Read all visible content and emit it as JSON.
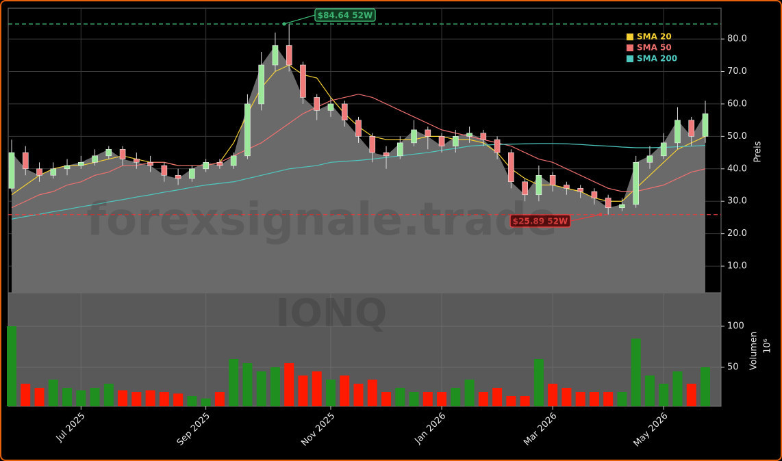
{
  "chart_data": {
    "type": "candlestick",
    "watermark": "forexsignale.trade",
    "symbol": "IONQ",
    "ylabel": "Preis",
    "categories": [
      null,
      null,
      null,
      null,
      null,
      "Jul 2025",
      null,
      null,
      null,
      null,
      null,
      null,
      null,
      null,
      "Sep 2025",
      null,
      null,
      null,
      null,
      null,
      null,
      null,
      null,
      "Nov 2025",
      null,
      null,
      null,
      null,
      null,
      null,
      null,
      "Jan 2026",
      null,
      null,
      null,
      null,
      null,
      null,
      null,
      "Mar 2026",
      null,
      null,
      null,
      null,
      null,
      null,
      null,
      "May 2026",
      null,
      null,
      null
    ],
    "open": [
      34,
      45,
      40,
      38,
      40,
      41,
      42,
      44,
      46,
      43,
      42,
      41,
      38,
      37,
      40,
      42,
      41,
      44,
      60,
      72,
      78,
      72,
      62,
      58,
      60,
      55,
      50,
      45,
      44,
      48,
      52,
      50,
      47,
      50,
      51,
      49,
      45,
      36,
      32,
      38,
      35,
      34,
      33,
      31,
      28,
      29,
      42,
      44,
      48,
      55,
      50
    ],
    "high": [
      49,
      47,
      42,
      42,
      43,
      44,
      46,
      47,
      47,
      45,
      44,
      42,
      40,
      41,
      43,
      43,
      45,
      63,
      76,
      82,
      84.64,
      73,
      63,
      62,
      61,
      56,
      51,
      47,
      50,
      55,
      53,
      51,
      52,
      53,
      52,
      50,
      46,
      37,
      41,
      39,
      36,
      35,
      34,
      32,
      31,
      44,
      47,
      51,
      59,
      56,
      61
    ],
    "low": [
      33,
      38,
      36,
      37,
      38,
      40,
      41,
      43,
      41,
      40,
      39,
      36,
      35,
      36,
      39,
      40,
      40,
      43,
      58,
      70,
      70,
      60,
      55,
      56,
      53,
      48,
      42,
      40,
      43,
      47,
      46,
      45,
      45,
      48,
      47,
      43,
      34,
      30,
      30,
      33,
      32,
      31,
      29,
      25.89,
      27,
      28,
      40,
      43,
      46,
      47,
      48
    ],
    "close": [
      45,
      40,
      38,
      40,
      41,
      42,
      44,
      46,
      43,
      42,
      41,
      38,
      37,
      40,
      42,
      41,
      44,
      60,
      72,
      78,
      72,
      62,
      58,
      60,
      55,
      50,
      45,
      44,
      48,
      52,
      50,
      47,
      50,
      51,
      49,
      45,
      36,
      32,
      38,
      35,
      34,
      33,
      31,
      28,
      29,
      42,
      44,
      48,
      55,
      50,
      57
    ],
    "up_color": "#9be89b",
    "down_color": "#f07a7a",
    "area_color": "#6a6a6a",
    "series": [
      {
        "name": "SMA 20",
        "color": "#f5d033",
        "values": [
          32,
          35,
          38,
          40,
          41,
          41,
          42,
          43,
          44,
          43,
          42,
          42,
          41,
          41,
          41,
          42,
          48,
          57,
          65,
          70,
          72,
          69,
          68,
          62,
          57,
          53,
          50,
          49,
          49,
          49,
          50,
          50,
          49,
          49,
          48,
          45,
          40,
          37,
          35,
          35,
          34,
          33,
          31,
          30,
          30,
          34,
          38,
          42,
          46,
          48,
          50
        ]
      },
      {
        "name": "SMA 50",
        "color": "#f07070",
        "values": [
          28,
          30,
          32,
          33,
          35,
          36,
          38,
          39,
          41,
          41,
          42,
          42,
          41,
          41,
          41,
          42,
          44,
          46,
          48,
          51,
          54,
          57,
          59,
          61,
          62,
          63,
          62,
          60,
          58,
          56,
          54,
          52,
          51,
          50,
          49,
          48,
          47,
          45,
          43,
          42,
          40,
          38,
          36,
          34,
          33,
          33,
          34,
          35,
          37,
          39,
          40
        ]
      },
      {
        "name": "SMA 200",
        "color": "#4ec9c0",
        "values": [
          24.5,
          25.3,
          26,
          26.8,
          27.5,
          28.3,
          29,
          29.8,
          30.5,
          31.3,
          32,
          32.8,
          33.5,
          34.3,
          35,
          35.5,
          36,
          37,
          38,
          39,
          40,
          40.5,
          41,
          42,
          42.3,
          42.6,
          43,
          43.5,
          44,
          44.5,
          45,
          45.7,
          46.3,
          47,
          47.3,
          47.5,
          47.6,
          47.7,
          47.8,
          47.8,
          47.7,
          47.5,
          47.2,
          47,
          46.7,
          46.5,
          46.5,
          46.6,
          46.8,
          47,
          47.2
        ]
      }
    ],
    "hlines": [
      {
        "value": 84.64,
        "label": "$84.64 52W",
        "color": "#3cb371"
      },
      {
        "value": 25.89,
        "label": "$25.89 52W",
        "color": "#e04040"
      }
    ],
    "ylim": [
      1.8,
      89.5
    ],
    "yticks": [
      {
        "value": 10,
        "label": "10.0"
      },
      {
        "value": 20,
        "label": "20.0"
      },
      {
        "value": 30,
        "label": "30.0"
      },
      {
        "value": 40,
        "label": "40.0"
      },
      {
        "value": 50,
        "label": "50.0"
      },
      {
        "value": 60,
        "label": "60.0"
      },
      {
        "value": 70,
        "label": "70.0"
      },
      {
        "value": 80,
        "label": "80.0"
      }
    ],
    "grid": true,
    "legend": "upper right",
    "volume": {
      "ylabel": "Volumen",
      "unit": "10⁶",
      "up_color": "#1f8f1f",
      "down_color": "#ff1a00",
      "values": [
        100,
        30,
        25,
        35,
        25,
        22,
        25,
        30,
        22,
        20,
        22,
        20,
        18,
        15,
        12,
        20,
        60,
        55,
        45,
        50,
        55,
        40,
        45,
        35,
        40,
        30,
        35,
        20,
        25,
        20,
        20,
        20,
        25,
        35,
        20,
        25,
        15,
        15,
        60,
        30,
        25,
        20,
        20,
        20,
        20,
        85,
        40,
        30,
        45,
        30,
        50
      ],
      "ylim": [
        2.5,
        140.8
      ],
      "yticks": [
        50,
        100
      ]
    }
  }
}
